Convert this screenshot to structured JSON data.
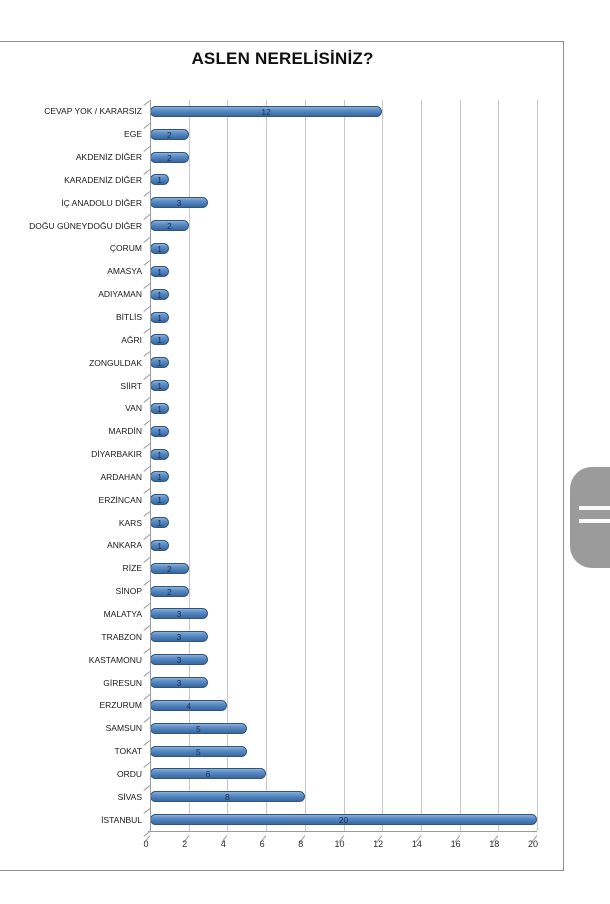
{
  "page": {
    "title": "ASLEN NERELİSİNİZ?"
  },
  "chart_data": {
    "type": "bar",
    "orientation": "horizontal",
    "title": "ASLEN NERELİSİNİZ?",
    "categories": [
      "CEVAP YOK / KARARSIZ",
      "EGE",
      "AKDENİZ DİĞER",
      "KARADENİZ DİĞER",
      "İÇ ANADOLU DİĞER",
      "DOĞU GÜNEYDOĞU DİĞER",
      "ÇORUM",
      "AMASYA",
      "ADIYAMAN",
      "BİTLİS",
      "AĞRI",
      "ZONGULDAK",
      "SİİRT",
      "VAN",
      "MARDİN",
      "DİYARBAKIR",
      "ARDAHAN",
      "ERZİNCAN",
      "KARS",
      "ANKARA",
      "RİZE",
      "SİNOP",
      "MALATYA",
      "TRABZON",
      "KASTAMONU",
      "GİRESUN",
      "ERZURUM",
      "SAMSUN",
      "TOKAT",
      "ORDU",
      "SİVAS",
      "İSTANBUL"
    ],
    "values": [
      12,
      2,
      2,
      1,
      3,
      2,
      1,
      1,
      1,
      1,
      1,
      1,
      1,
      1,
      1,
      1,
      1,
      1,
      1,
      1,
      2,
      2,
      3,
      3,
      3,
      3,
      4,
      5,
      5,
      6,
      8,
      20
    ],
    "x_ticks": [
      0,
      2,
      4,
      6,
      8,
      10,
      12,
      14,
      16,
      18,
      20
    ],
    "xlim": [
      0,
      20
    ],
    "grid": true,
    "legend": false,
    "data_labels": "center",
    "colors": {
      "bar_fill": "#4f81bd",
      "bar_border": "#2e5681",
      "value_label": "#1c3050",
      "gridline": "#c8c8c8",
      "axis": "#9a9a9a",
      "frame_border": "#8f8f8f",
      "scroll_handle": "#9b9b9b"
    }
  }
}
